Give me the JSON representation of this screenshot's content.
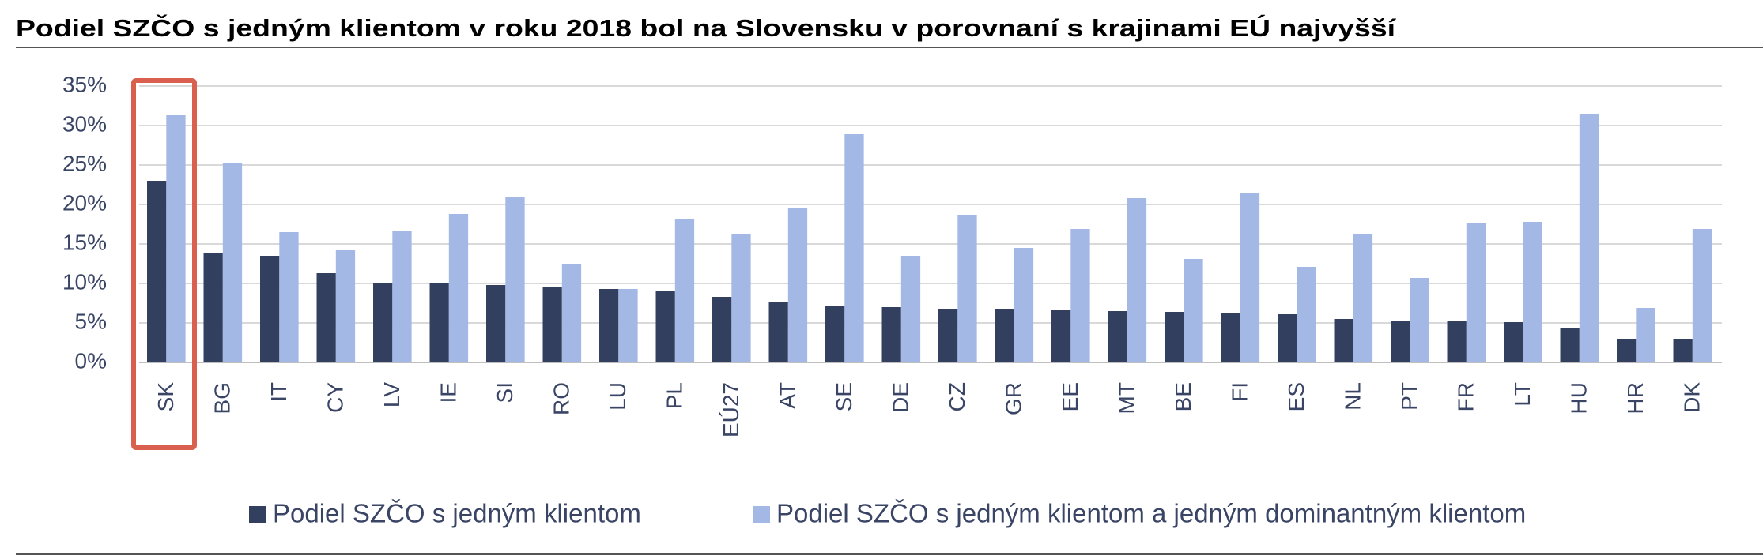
{
  "chart_data": {
    "type": "bar",
    "title": "Podiel SZČO s jedným klientom v roku 2018 bol na Slovensku v porovnaní s krajinami EÚ najvyšší",
    "categories": [
      "SK",
      "BG",
      "IT",
      "CY",
      "LV",
      "IE",
      "SI",
      "RO",
      "LU",
      "PL",
      "EÚ27",
      "AT",
      "SE",
      "DE",
      "CZ",
      "GR",
      "EE",
      "MT",
      "BE",
      "FI",
      "ES",
      "NL",
      "PT",
      "FR",
      "LT",
      "HU",
      "HR",
      "DK"
    ],
    "series": [
      {
        "name": "Podiel SZČO s jedným klientom",
        "color": "#323f5e",
        "values": [
          23,
          13.9,
          13.5,
          11.3,
          10,
          10,
          9.8,
          9.6,
          9.3,
          9,
          8.3,
          7.7,
          7.1,
          7,
          6.8,
          6.8,
          6.6,
          6.5,
          6.4,
          6.3,
          6.1,
          5.5,
          5.3,
          5.3,
          5.1,
          4.4,
          3,
          3
        ]
      },
      {
        "name": "Podiel SZČO s jedným klientom a jedným dominantným klientom",
        "color": "#a4b8e6",
        "values": [
          31.3,
          25.3,
          16.5,
          14.2,
          16.7,
          18.8,
          21,
          12.4,
          9.3,
          18.1,
          16.2,
          19.6,
          28.9,
          13.5,
          18.7,
          14.5,
          16.9,
          20.8,
          13.1,
          21.4,
          12.1,
          16.3,
          10.7,
          17.6,
          17.8,
          31.5,
          6.9,
          16.9
        ]
      }
    ],
    "ylim": [
      0,
      35
    ],
    "yticks": [
      {
        "value": 0,
        "label": "0%"
      },
      {
        "value": 5,
        "label": "5%"
      },
      {
        "value": 10,
        "label": "10%"
      },
      {
        "value": 15,
        "label": "15%"
      },
      {
        "value": 20,
        "label": "20%"
      },
      {
        "value": 25,
        "label": "25%"
      },
      {
        "value": 30,
        "label": "30%"
      },
      {
        "value": 35,
        "label": "35%"
      }
    ],
    "grid": true,
    "legend": "bottom"
  }
}
